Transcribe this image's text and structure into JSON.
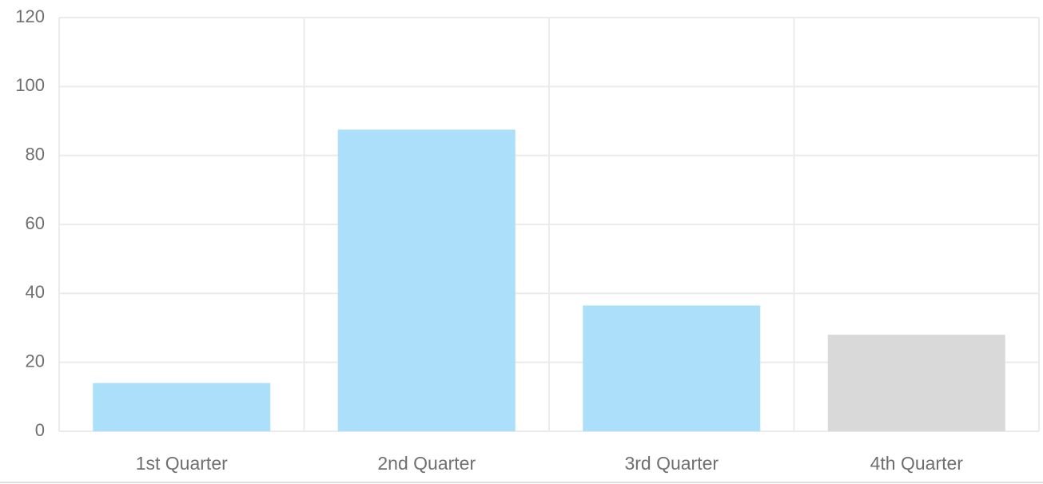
{
  "chart_data": {
    "type": "bar",
    "categories": [
      "1st Quarter",
      "2nd Quarter",
      "3rd Quarter",
      "4th Quarter"
    ],
    "values": [
      14,
      87.5,
      36.5,
      28
    ],
    "bar_colors": [
      "#acdffa",
      "#acdffa",
      "#acdffa",
      "#d9d9d9"
    ],
    "ylim": [
      0,
      120
    ],
    "yticks": [
      0,
      20,
      40,
      60,
      80,
      100,
      120
    ],
    "ytick_labels": [
      "0",
      "20",
      "40",
      "60",
      "80",
      "100",
      "120"
    ],
    "grid": true,
    "grid_color": "#ebebeb",
    "label_color": "#6f6f6f",
    "title": "",
    "xlabel": "",
    "ylabel": ""
  }
}
